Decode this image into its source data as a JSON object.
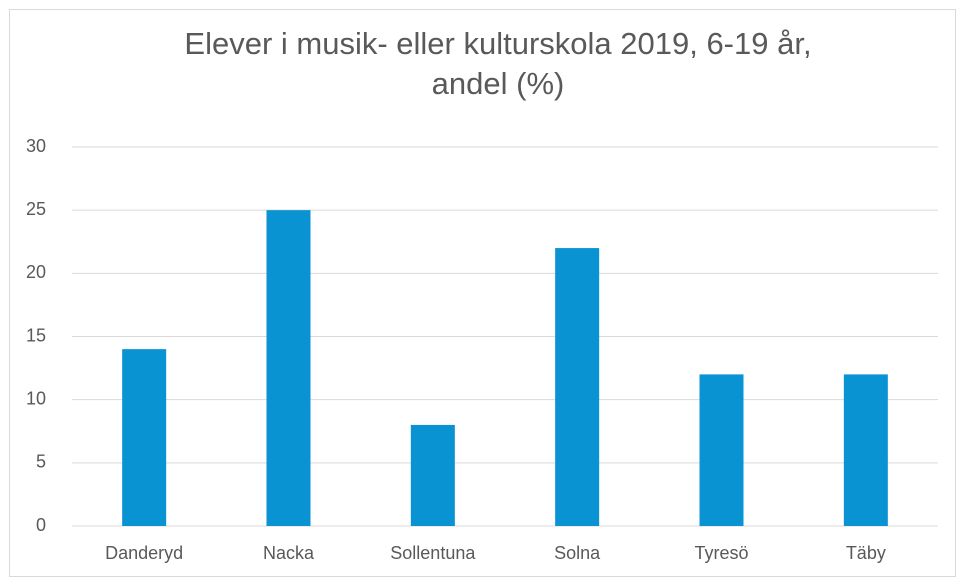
{
  "chart_data": {
    "type": "bar",
    "title": "Elever i musik- eller kulturskola 2019, 6-19 år, andel (%)",
    "categories": [
      "Danderyd",
      "Nacka",
      "Sollentuna",
      "Solna",
      "Tyresö",
      "Täby"
    ],
    "values": [
      14,
      25,
      8,
      22,
      12,
      12
    ],
    "color": "#0a93d3",
    "ylim": [
      0,
      30
    ],
    "yticks": [
      0,
      5,
      10,
      15,
      20,
      25,
      30
    ],
    "grid": true
  }
}
